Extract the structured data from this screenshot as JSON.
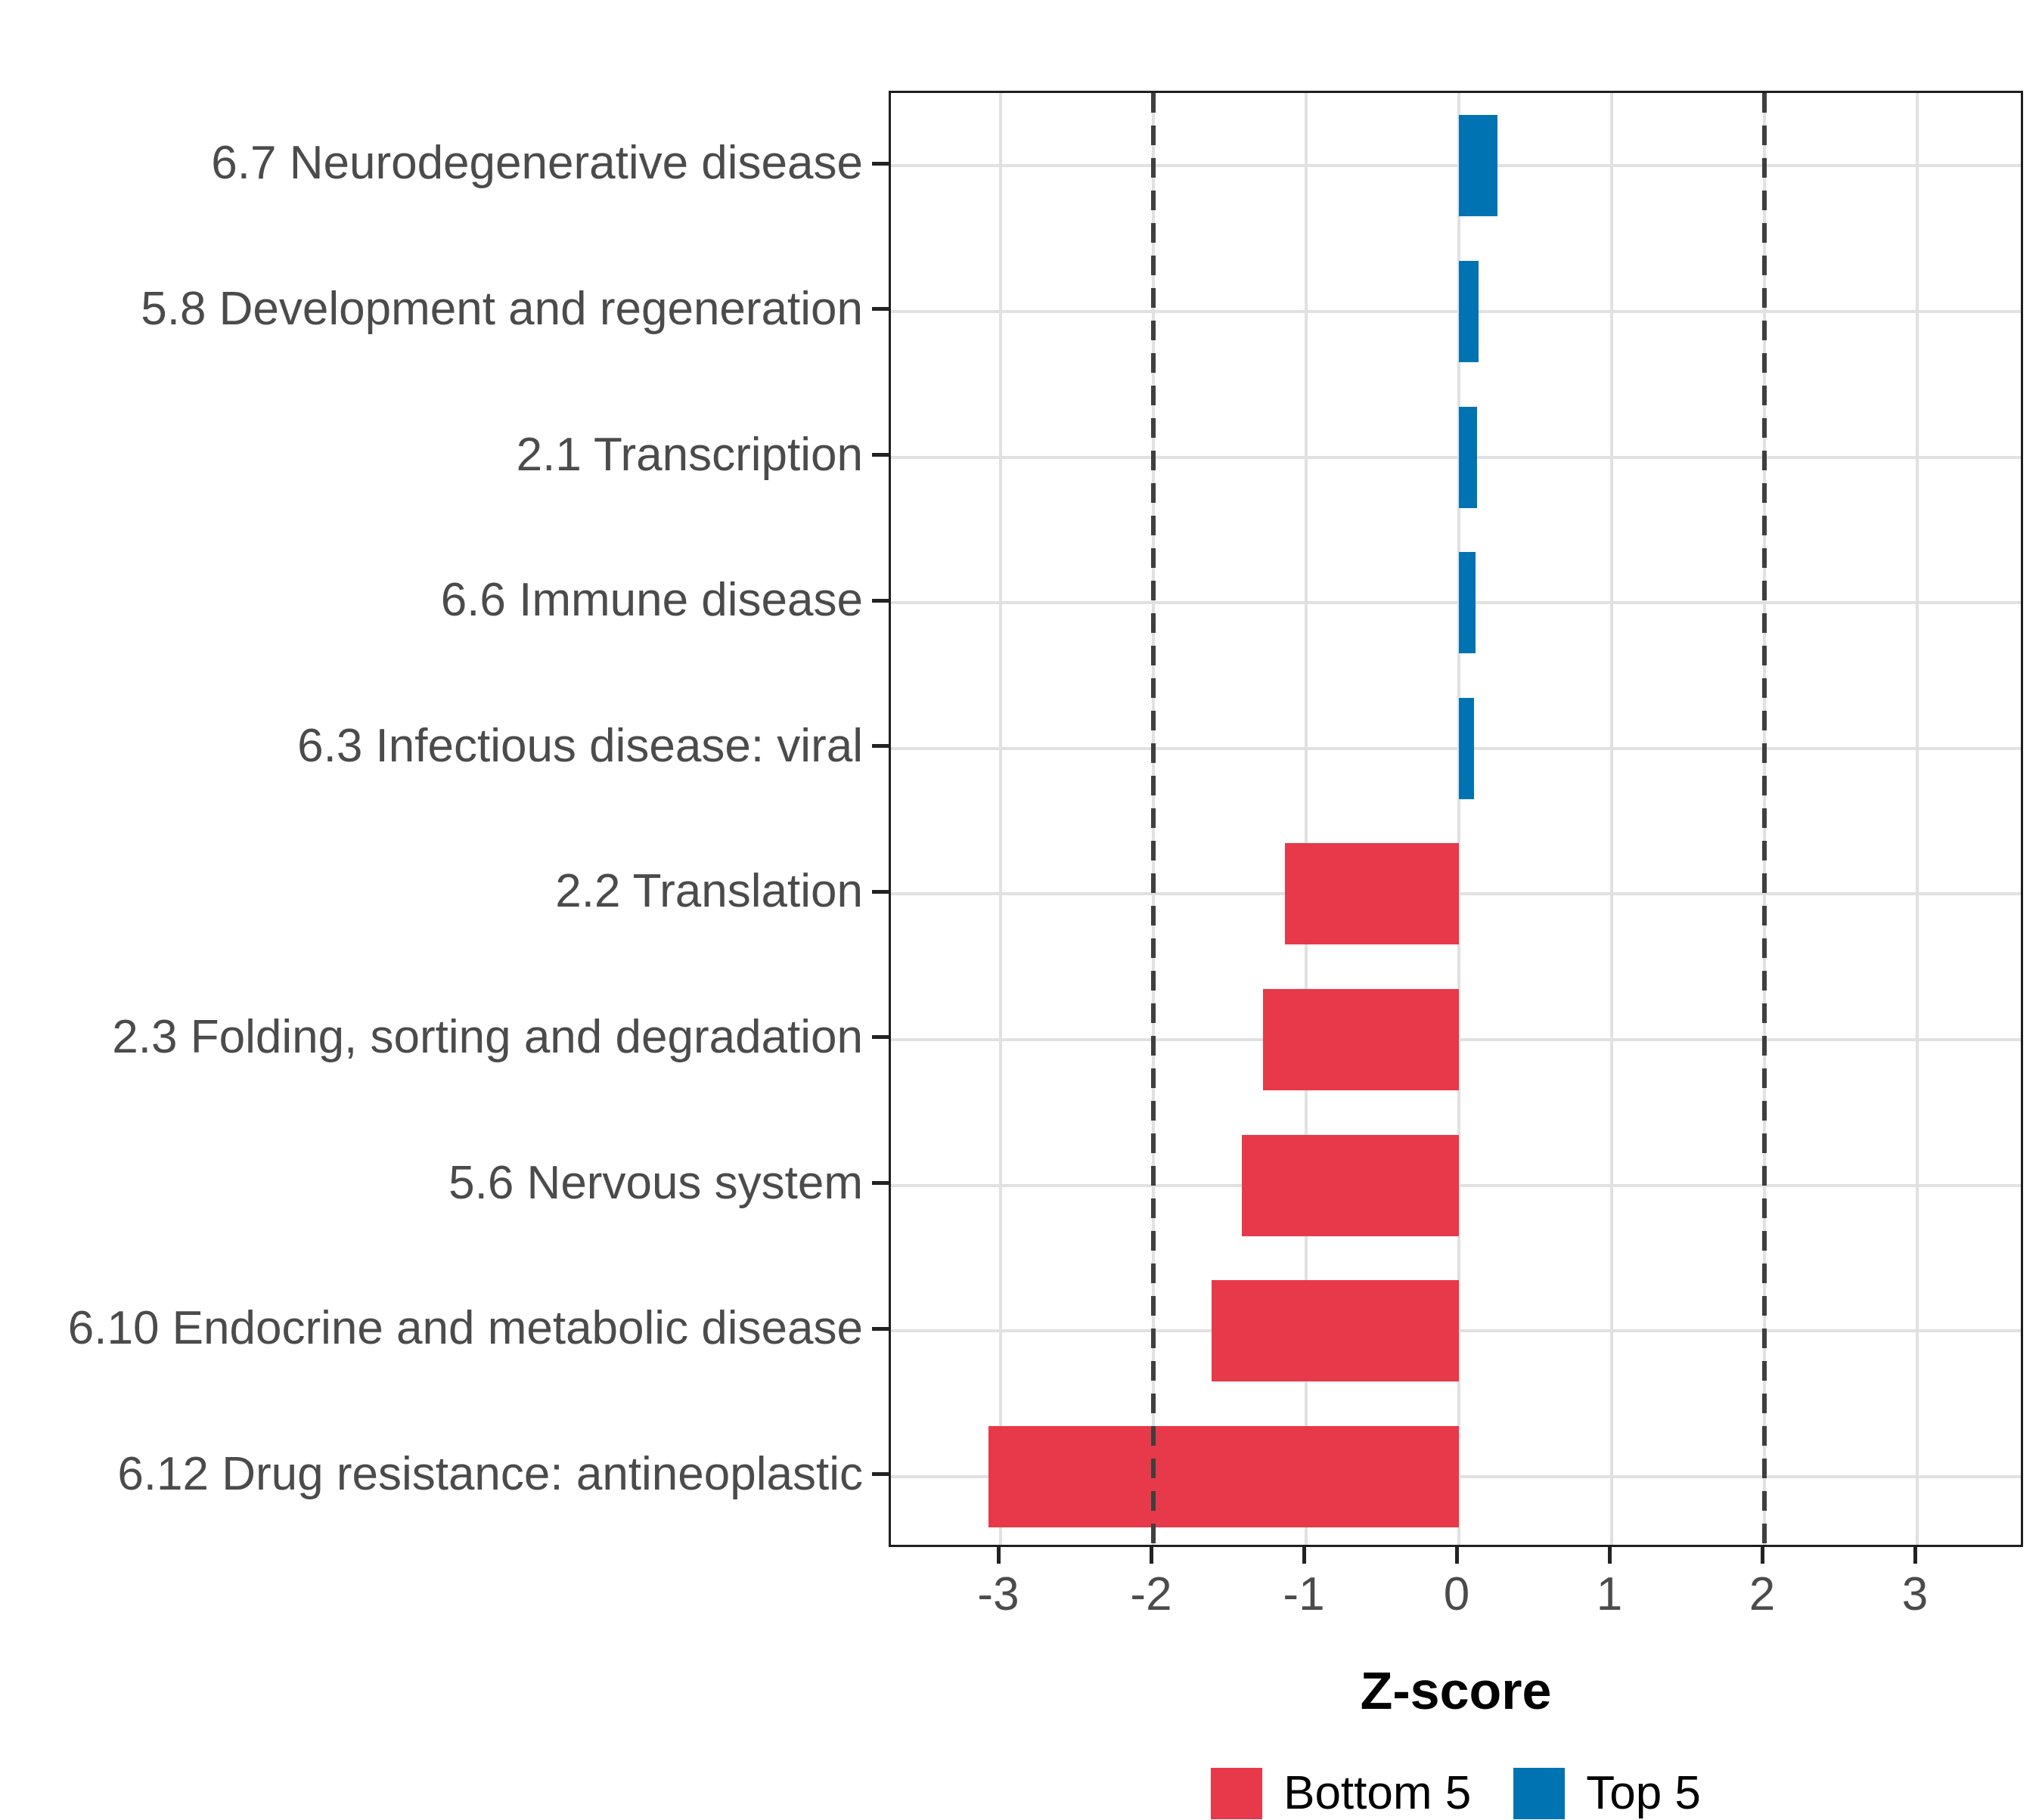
{
  "chart_data": {
    "type": "bar",
    "orientation": "horizontal",
    "title": "",
    "xlabel": "Z-score",
    "ylabel": "",
    "xlim": [
      -3.71,
      3.71
    ],
    "x_ticks": [
      -3,
      -2,
      -1,
      0,
      1,
      2,
      3
    ],
    "reference_lines": [
      -2,
      2
    ],
    "grid": true,
    "legend_position": "bottom",
    "categories": [
      "6.7 Neurodegenerative disease",
      "5.8 Development and regeneration",
      "2.1 Transcription",
      "6.6 Immune disease",
      "6.3 Infectious disease: viral",
      "2.2 Translation",
      "2.3 Folding, sorting and degradation",
      "5.6 Nervous system",
      "6.10 Endocrine and metabolic disease",
      "6.12 Drug resistance: antineoplastic"
    ],
    "series": [
      {
        "name": "Z-score",
        "values": [
          0.25,
          0.13,
          0.12,
          0.11,
          0.1,
          -1.14,
          -1.28,
          -1.42,
          -1.62,
          -3.08
        ]
      }
    ],
    "groups": [
      "Top 5",
      "Top 5",
      "Top 5",
      "Top 5",
      "Top 5",
      "Bottom 5",
      "Bottom 5",
      "Bottom 5",
      "Bottom 5",
      "Bottom 5"
    ],
    "legend": [
      {
        "label": "Bottom 5",
        "color": "#E8394A"
      },
      {
        "label": "Top 5",
        "color": "#0073B2"
      }
    ]
  },
  "colors": {
    "bottom5": "#E8394A",
    "top5": "#0073B2",
    "gridline": "#E1E1E1",
    "reference_line": "#3F3F3F",
    "axis_text": "#4B4B4B",
    "panel_border": "#1F1F1F",
    "background": "#FFFFFF"
  }
}
